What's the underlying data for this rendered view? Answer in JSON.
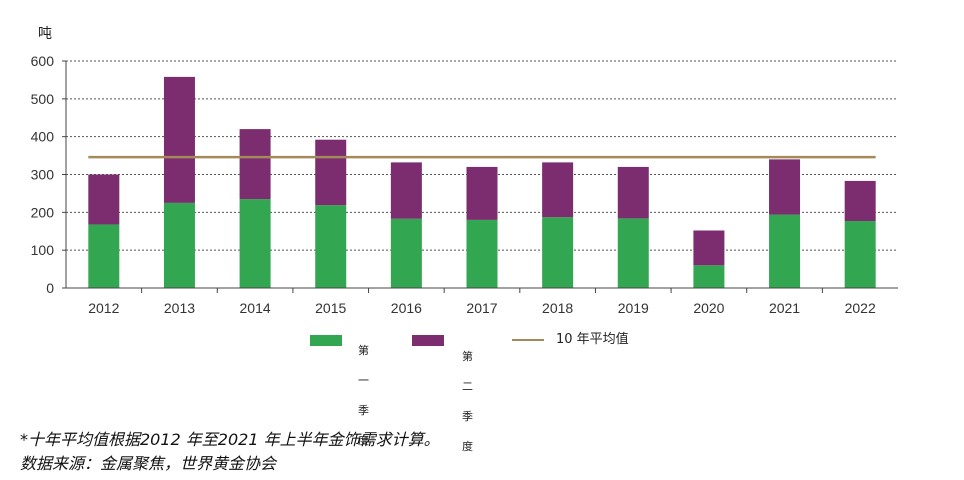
{
  "chart_data": {
    "type": "bar",
    "stacked": true,
    "unit_label": "吨",
    "categories": [
      "2012",
      "2013",
      "2014",
      "2015",
      "2016",
      "2017",
      "2018",
      "2019",
      "2020",
      "2021",
      "2022"
    ],
    "series": [
      {
        "name": "第一季度",
        "color": "#33a651",
        "values": [
          168,
          225,
          235,
          219,
          183,
          180,
          187,
          184,
          60,
          194,
          177
        ]
      },
      {
        "name": "第二季度",
        "color": "#7b2d6f",
        "values": [
          132,
          333,
          185,
          173,
          149,
          140,
          145,
          136,
          92,
          146,
          106
        ]
      }
    ],
    "reference_line": {
      "name": "10 年平均值",
      "value": 346,
      "color": "#a48a5a"
    },
    "ylim": [
      0,
      600
    ],
    "yticks": [
      0,
      100,
      200,
      300,
      400,
      500,
      600
    ],
    "grid": true,
    "legend_position": "bottom"
  },
  "legend": {
    "q1_label": "第一\n季度",
    "q2_label": "第二\n季度",
    "avg_label": "10 年平均值"
  },
  "notes": {
    "footnote": "*十年平均值根据2012 年至2021 年上半年金饰需求计算。",
    "source": "数据来源：金属聚焦，世界黄金协会"
  }
}
